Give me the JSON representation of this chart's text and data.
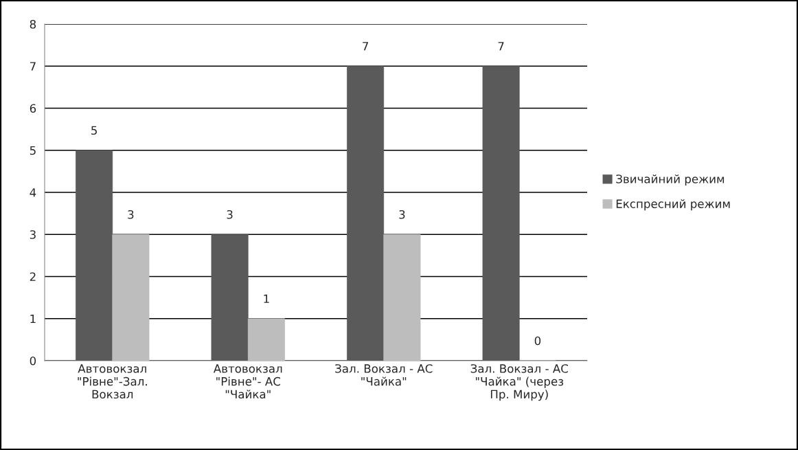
{
  "chart_data": {
    "type": "bar",
    "categories": [
      "Автовокзал \"Рівне\"-Зал. Вокзал",
      "Автовокзал \"Рівне\"- АС \"Чайка\"",
      "Зал. Вокзал - АС \"Чайка\"",
      "Зал. Вокзал - АС \"Чайка\" (через Пр. Миру)"
    ],
    "series": [
      {
        "name": "Звичайний режим",
        "color": "#5a5a5a",
        "values": [
          5,
          3,
          7,
          7
        ]
      },
      {
        "name": "Експресний режим",
        "color": "#bdbdbd",
        "values": [
          3,
          1,
          3,
          0
        ]
      }
    ],
    "ylim": [
      0,
      8
    ],
    "yticks": [
      0,
      1,
      2,
      3,
      4,
      5,
      6,
      7,
      8
    ],
    "grid": "y",
    "legend": "right",
    "data_labels": true
  }
}
